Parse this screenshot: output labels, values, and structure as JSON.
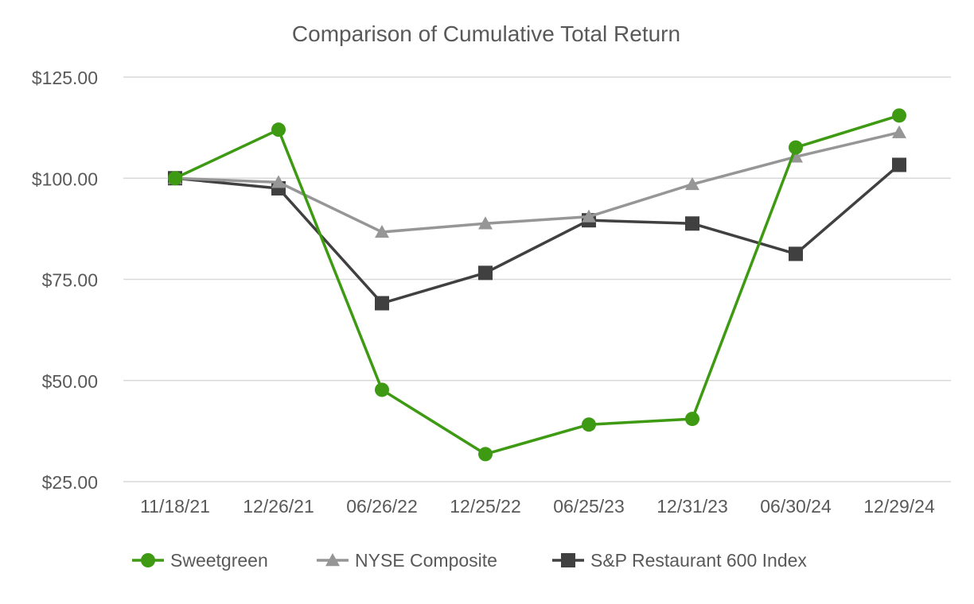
{
  "chart_data": {
    "type": "line",
    "title": "Comparison of Cumulative Total Return",
    "xlabel": "",
    "ylabel": "",
    "categories": [
      "11/18/21",
      "12/26/21",
      "06/26/22",
      "12/25/22",
      "06/25/23",
      "12/31/23",
      "06/30/24",
      "12/29/24"
    ],
    "y_ticks": [
      "$25.00",
      "$50.00",
      "$75.00",
      "$100.00",
      "$125.00"
    ],
    "y_tick_values": [
      25,
      50,
      75,
      100,
      125
    ],
    "ylim": [
      25,
      125
    ],
    "grid": "horizontal",
    "legend_position": "bottom",
    "series": [
      {
        "name": "Sweetgreen",
        "color": "#3e9a12",
        "marker": "circle",
        "values": [
          100.0,
          112.0,
          47.7,
          31.8,
          39.1,
          40.5,
          107.6,
          115.5
        ]
      },
      {
        "name": "NYSE Composite",
        "color": "#969696",
        "marker": "triangle",
        "values": [
          100.0,
          99.0,
          86.7,
          88.8,
          90.5,
          98.5,
          105.3,
          111.3
        ]
      },
      {
        "name": "S&P Restaurant 600 Index",
        "color": "#404040",
        "marker": "square",
        "values": [
          100.0,
          97.5,
          69.1,
          76.6,
          89.6,
          88.8,
          81.3,
          103.3
        ]
      }
    ]
  }
}
